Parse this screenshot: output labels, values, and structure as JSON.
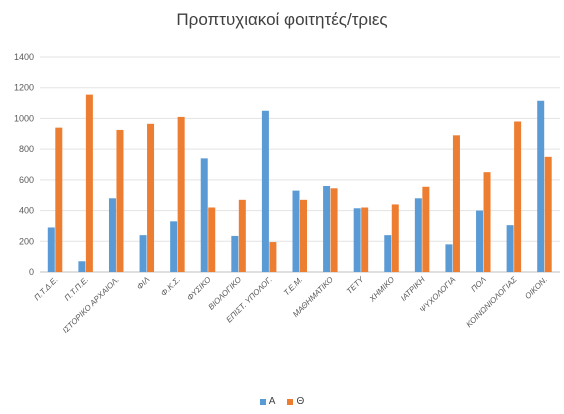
{
  "chart_data": {
    "type": "bar",
    "title": "Προπτυχιακοί φοιτητές/τριες",
    "xlabel": "",
    "ylabel": "",
    "ylim": [
      0,
      1400
    ],
    "yticks": [
      0,
      200,
      400,
      600,
      800,
      1000,
      1200,
      1400
    ],
    "grid": true,
    "legend_position": "bottom",
    "categories": [
      "Π.Τ.Δ.Ε.",
      "Π.Τ.Π.Ε.",
      "ΙΣΤΟΡΙΚΟ ΑΡΧΑΙΟΛ.",
      "ΦΙΛ",
      "Φ.Κ.Σ.",
      "ΦΥΣΙΚΟ",
      "ΒΙΟΛΟΓΙΚΟ",
      "ΕΠΙΣΤ. ΥΠΟΛΟΓ.",
      "Τ.Ε.Μ.",
      "ΜΑΘΗΜΑΤΙΚΟ",
      "ΤΕΤΥ",
      "ΧΗΜΙΚΟ",
      "ΙΑΤΡΙΚΗ",
      "ΨΥΧΟΛΟΓΙΑ",
      "ΠΟΛ",
      "ΚΟΙΝΩΝΙΟΛΟΓΙΑΣ",
      "ΟΙΚΟΝ."
    ],
    "series": [
      {
        "name": "Α",
        "color": "#5b9bd5",
        "values": [
          290,
          70,
          480,
          240,
          330,
          740,
          235,
          1050,
          530,
          560,
          415,
          240,
          480,
          180,
          400,
          305,
          1115
        ]
      },
      {
        "name": "Θ",
        "color": "#ed7d31",
        "values": [
          940,
          1155,
          925,
          965,
          1010,
          420,
          470,
          195,
          470,
          545,
          420,
          440,
          555,
          890,
          650,
          980,
          750
        ]
      }
    ]
  }
}
